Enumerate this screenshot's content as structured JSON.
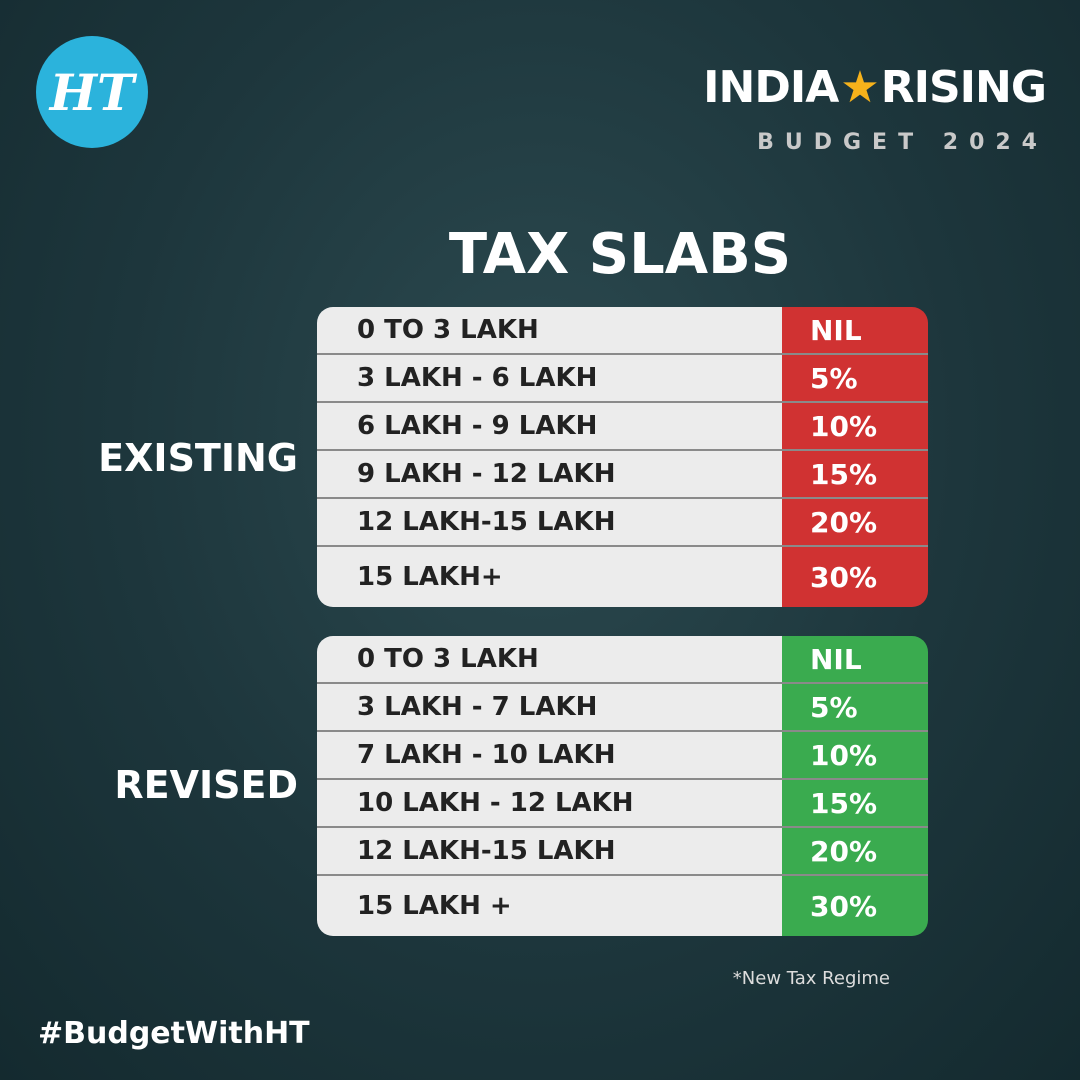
{
  "header": {
    "logo": "HT",
    "brand_left": "INDIA",
    "brand_right": "RISING",
    "subtitle": "BUDGET 2024"
  },
  "title": "TAX SLABS",
  "tables": [
    {
      "label": "EXISTING",
      "rows": [
        [
          "0 TO 3 LAKH",
          "NIL"
        ],
        [
          "3 LAKH - 6 LAKH",
          "5%"
        ],
        [
          "6 LAKH - 9 LAKH",
          "10%"
        ],
        [
          "9 LAKH - 12 LAKH",
          "15%"
        ],
        [
          "12 LAKH-15 LAKH",
          "20%"
        ],
        [
          "15 LAKH+",
          "30%"
        ]
      ]
    },
    {
      "label": "REVISED",
      "rows": [
        [
          "0 TO 3 LAKH",
          "NIL"
        ],
        [
          "3 LAKH - 7 LAKH",
          "5%"
        ],
        [
          "7 LAKH - 10 LAKH",
          "10%"
        ],
        [
          "10 LAKH - 12 LAKH",
          "15%"
        ],
        [
          "12 LAKH-15 LAKH",
          "20%"
        ],
        [
          "15 LAKH +",
          "30%"
        ]
      ]
    }
  ],
  "footnote": "*New Tax Regime",
  "hashtag": "#BudgetWithHT"
}
